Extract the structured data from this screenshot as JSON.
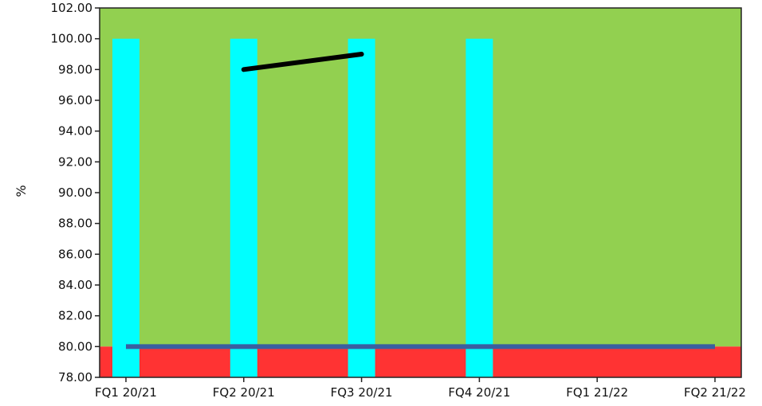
{
  "chart_data": {
    "type": "bar",
    "title": "",
    "xlabel": "",
    "ylabel": "%",
    "ylim": [
      78,
      102
    ],
    "yticks": [
      "78.00",
      "80.00",
      "82.00",
      "84.00",
      "86.00",
      "88.00",
      "90.00",
      "92.00",
      "94.00",
      "96.00",
      "98.00",
      "100.00",
      "102.00"
    ],
    "categories": [
      "FQ1 20/21",
      "FQ2 20/21",
      "FQ3 20/21",
      "FQ4 20/21",
      "FQ1 21/22",
      "FQ2 21/22"
    ],
    "bars": {
      "values": [
        100,
        100,
        100,
        100,
        null,
        null
      ],
      "color": "#00ffff"
    },
    "line": {
      "values": [
        null,
        98,
        99,
        null,
        null,
        null
      ],
      "color": "#000000"
    },
    "target": {
      "value": 80,
      "color": "#3a5fa0"
    },
    "bands": [
      {
        "from": 80,
        "to": 102,
        "color": "#92d050"
      },
      {
        "from": 78,
        "to": 80,
        "color": "#ff3333"
      }
    ],
    "grid": false,
    "legend": "none"
  }
}
